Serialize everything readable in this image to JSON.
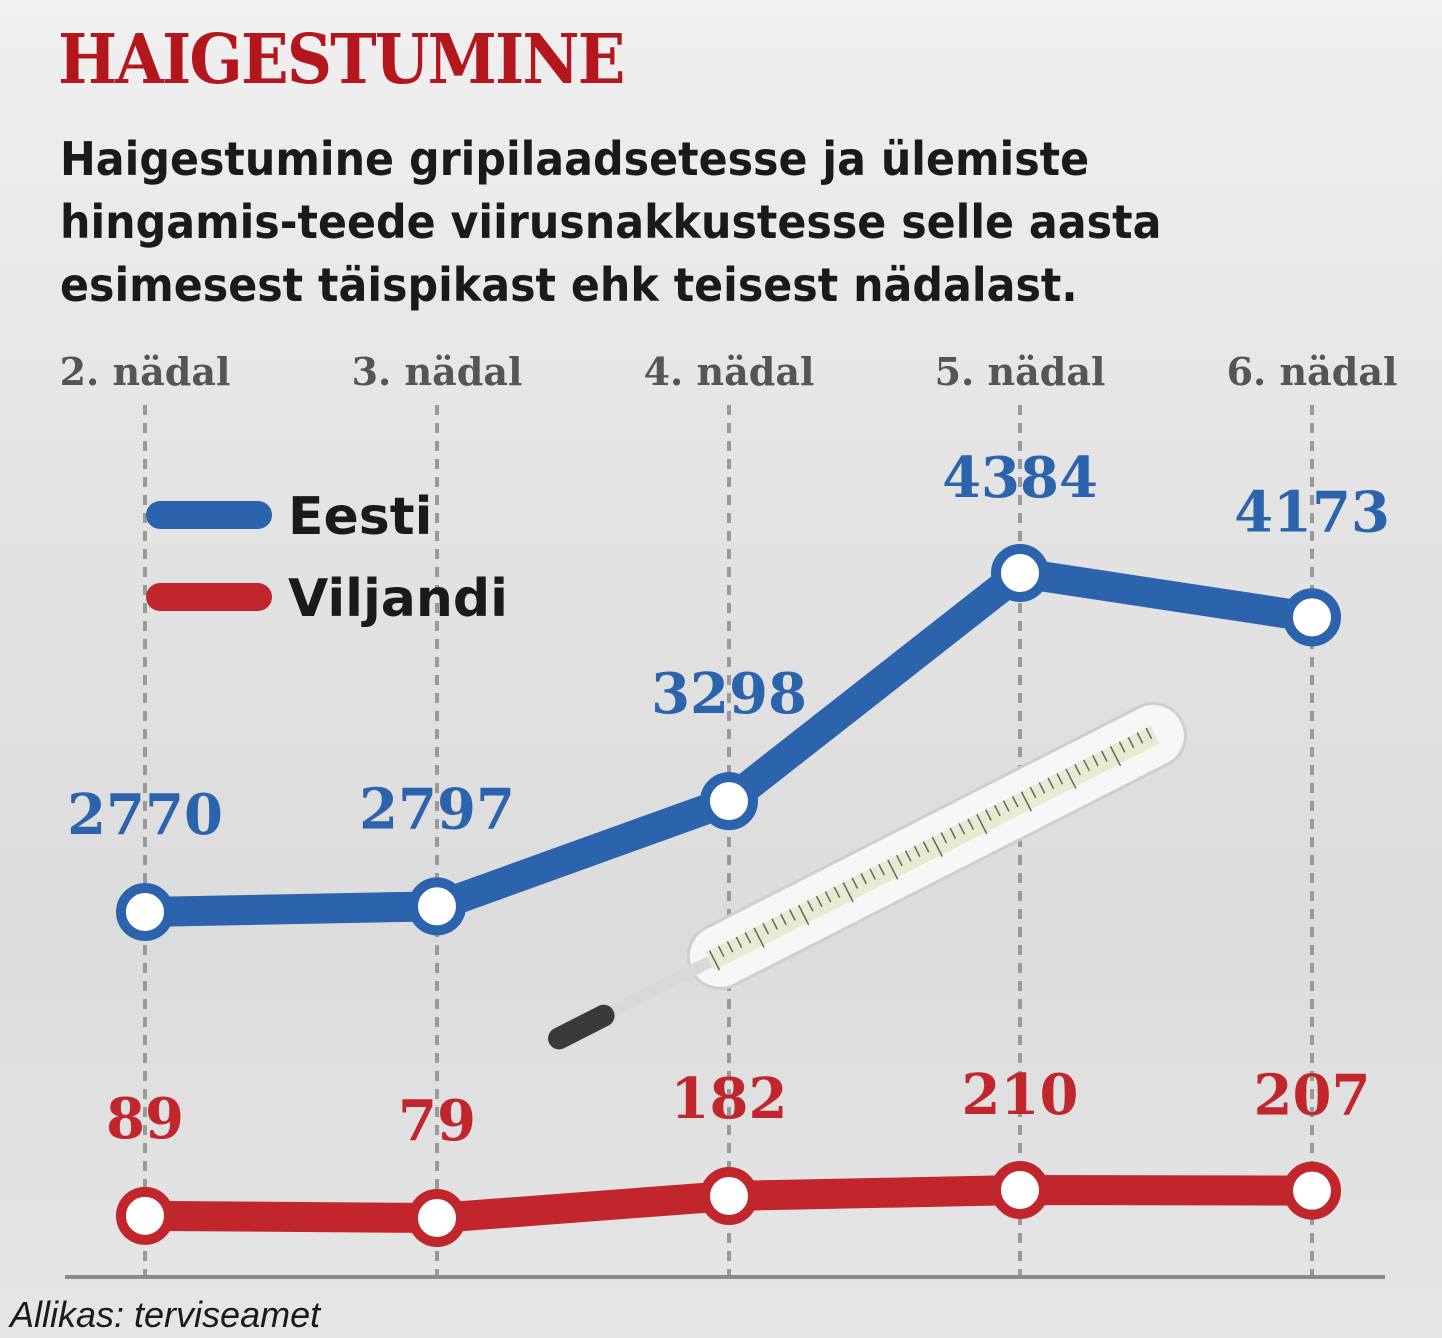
{
  "heading": "HAIGESTUMINE",
  "subtitle": "Haigestumine gripilaadsetesse ja ülemiste hingamis-teede viirusnakkustesse selle aasta esimesest täispikast ehk teisest nädalast.",
  "source": "Allikas: terviseamet",
  "colors": {
    "eesti": "#2c63ad",
    "viljandi": "#c0262c",
    "heading": "#b3171d",
    "axis_label": "#555555"
  },
  "chart_data": {
    "type": "line",
    "categories": [
      "2. nädal",
      "3. nädal",
      "4. nädal",
      "5. nädal",
      "6. nädal"
    ],
    "series": [
      {
        "name": "Eesti",
        "values": [
          2770,
          2797,
          3298,
          4384,
          4173
        ]
      },
      {
        "name": "Viljandi",
        "values": [
          89,
          79,
          182,
          210,
          207
        ]
      }
    ],
    "legend": "top-left",
    "grid": "vertical dashed lines"
  },
  "illustration": "thermometer-image"
}
